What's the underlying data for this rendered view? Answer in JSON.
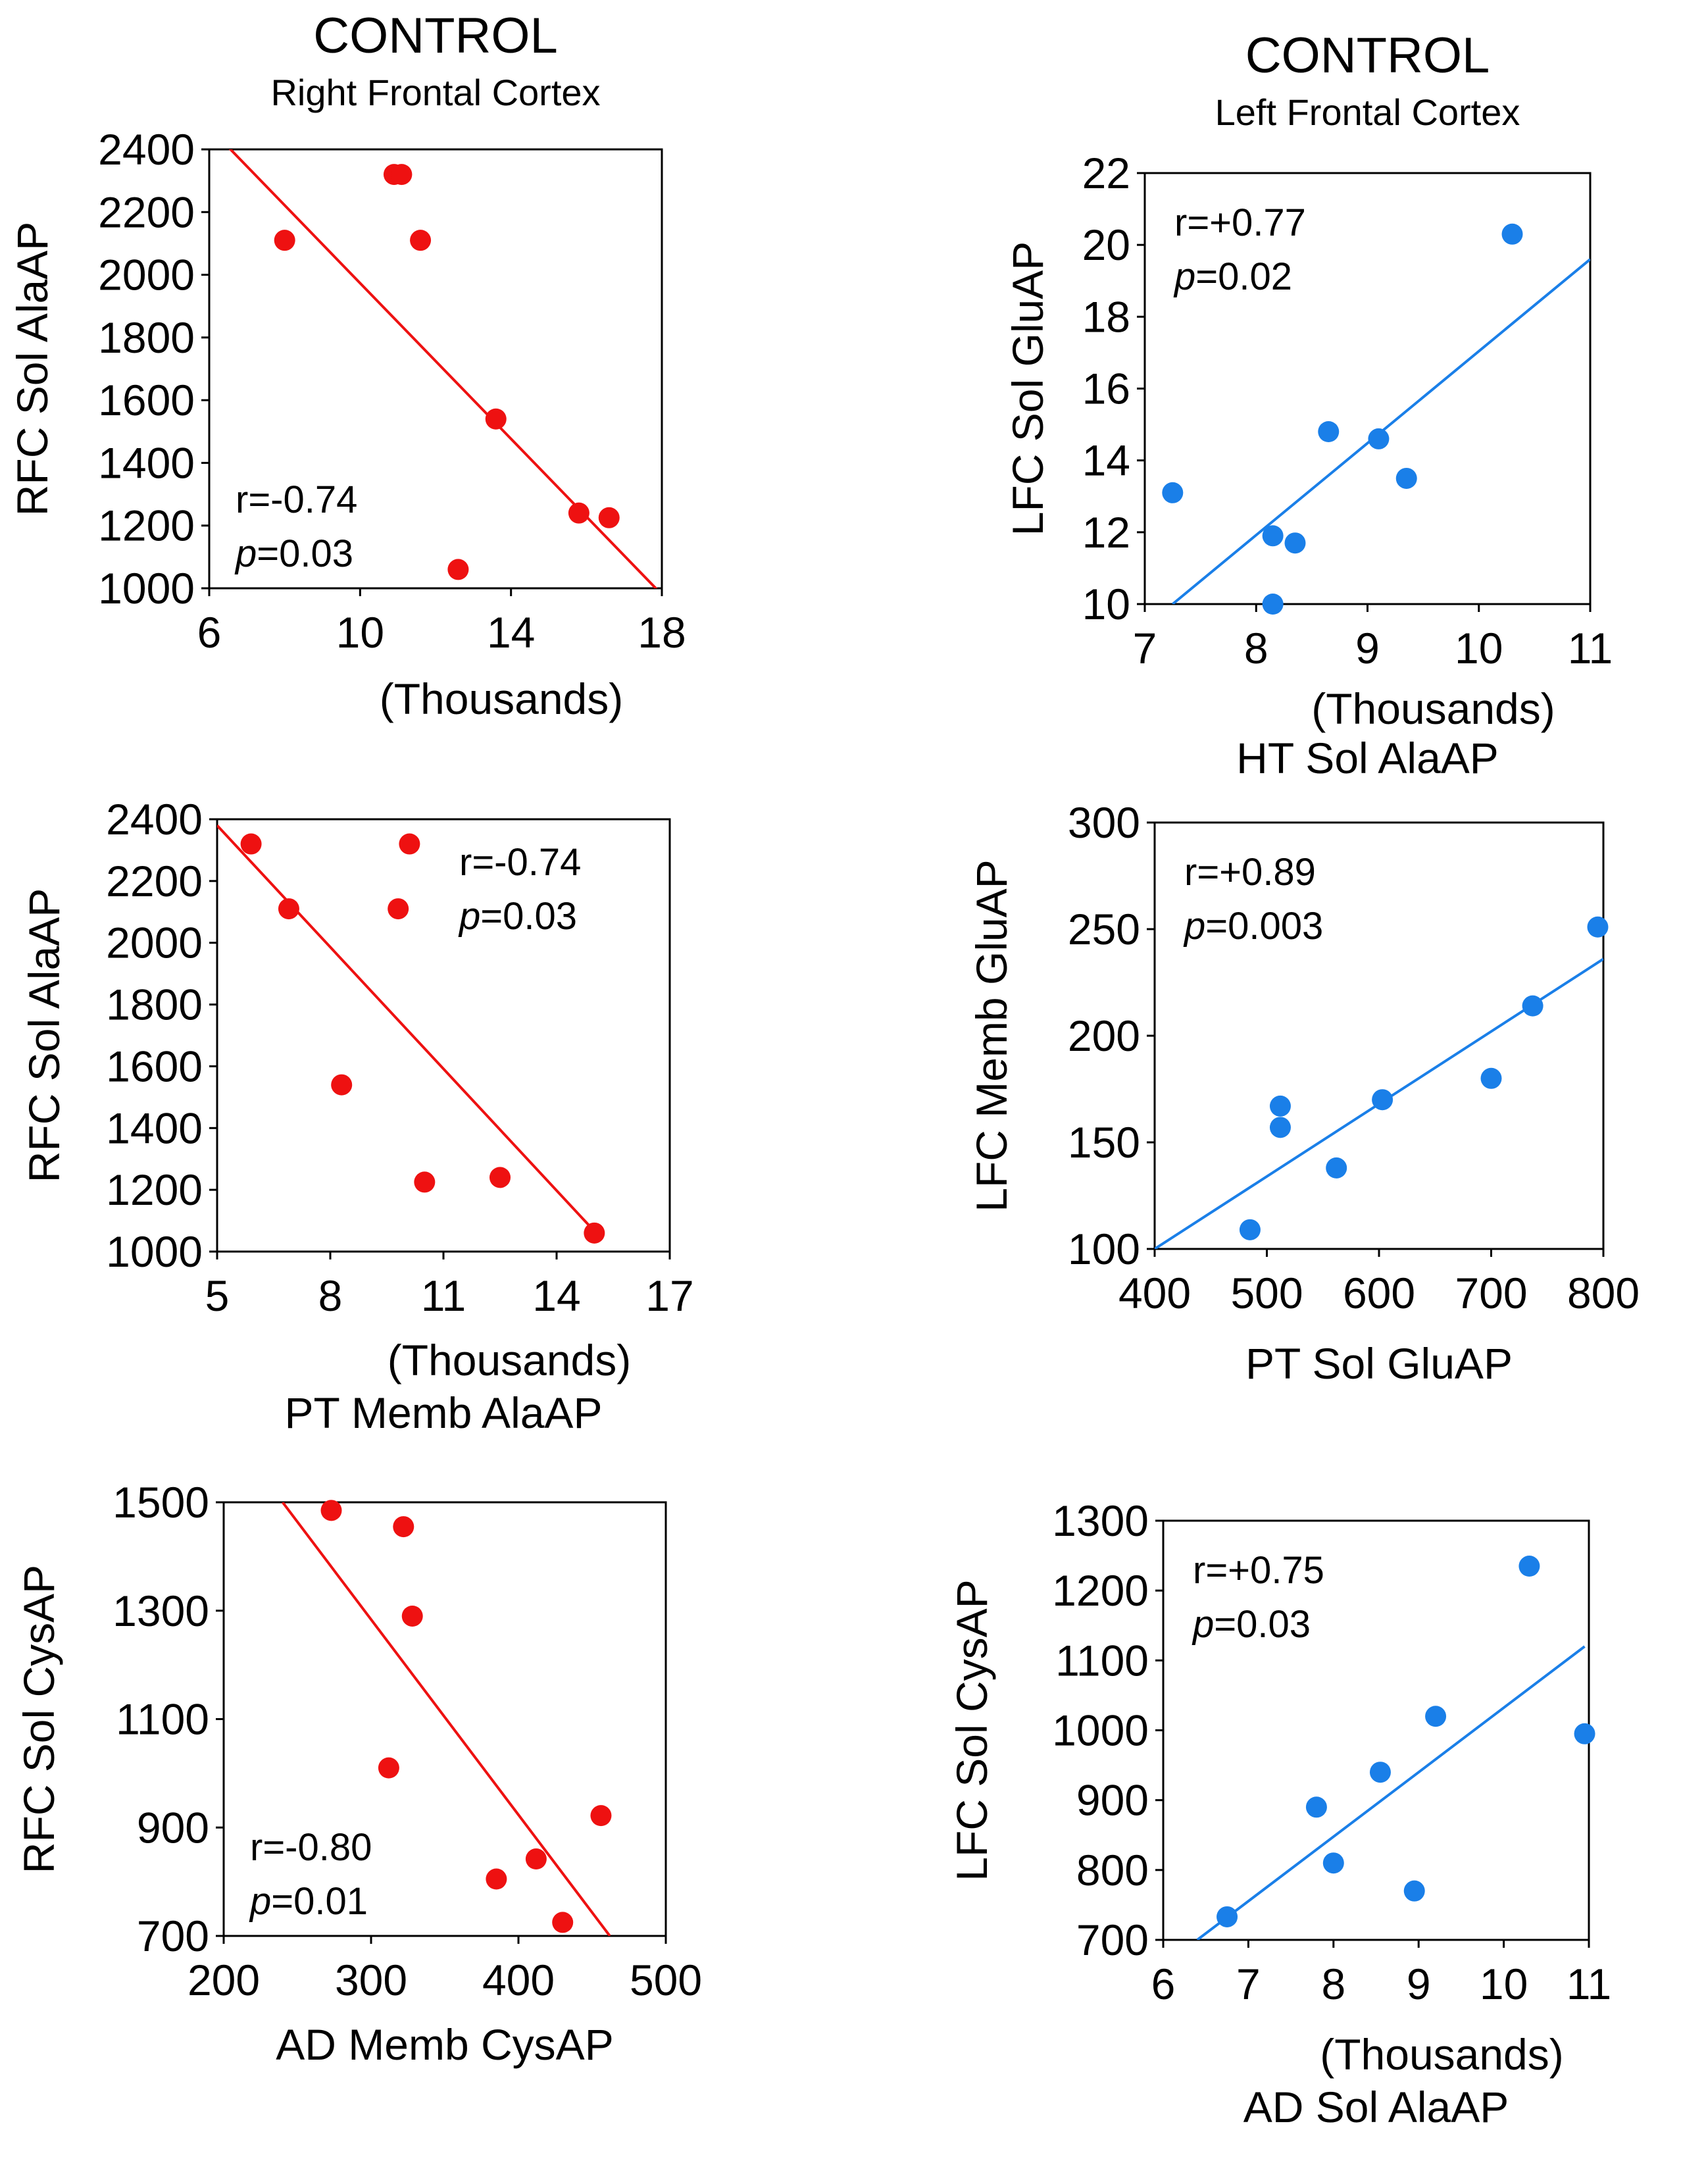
{
  "colors": {
    "red_series": "#ee1111",
    "blue_series": "#1a7fe8",
    "axis": "#000000",
    "background": "#ffffff"
  },
  "chart_data": [
    {
      "type": "scatter",
      "title": "CONTROL",
      "subtitle": "Right Frontal Cortex",
      "xlabel": "(Thousands)",
      "xlabel2": "",
      "ylabel": "RFC Sol AlaAP",
      "x_ticks": [
        "6",
        "10",
        "14",
        "18"
      ],
      "y_ticks": [
        "1000",
        "1200",
        "1400",
        "1600",
        "1800",
        "2000",
        "2200",
        "2400"
      ],
      "xlim": [
        6,
        18
      ],
      "ylim": [
        1000,
        2400
      ],
      "grid": false,
      "color": "#ee1111",
      "stat_position": "bottom-left",
      "points": [
        [
          8.0,
          2110
        ],
        [
          10.9,
          2320
        ],
        [
          11.1,
          2320
        ],
        [
          11.6,
          2110
        ],
        [
          13.6,
          1540
        ],
        [
          15.8,
          1240
        ],
        [
          16.6,
          1225
        ],
        [
          12.6,
          1060
        ]
      ],
      "fit": [
        [
          6.0,
          2470
        ],
        [
          18.0,
          980
        ]
      ],
      "stat_r": "r=-0.74",
      "stat_p_label": "p",
      "stat_p_value": "=0.03"
    },
    {
      "type": "scatter",
      "title": "CONTROL",
      "subtitle": "Left Frontal Cortex",
      "xlabel": "(Thousands)",
      "xlabel2": "HT Sol AlaAP",
      "ylabel": "LFC Sol GluAP",
      "x_ticks": [
        "7",
        "8",
        "9",
        "10",
        "11"
      ],
      "y_ticks": [
        "10",
        "12",
        "14",
        "16",
        "18",
        "20",
        "22"
      ],
      "xlim": [
        7,
        11
      ],
      "ylim": [
        10,
        22
      ],
      "grid": false,
      "color": "#1a7fe8",
      "stat_position": "top-left",
      "points": [
        [
          7.25,
          13.1
        ],
        [
          8.15,
          11.9
        ],
        [
          8.35,
          11.7
        ],
        [
          8.15,
          10.0
        ],
        [
          8.65,
          14.8
        ],
        [
          9.1,
          14.6
        ],
        [
          9.35,
          13.5
        ],
        [
          10.3,
          20.3
        ]
      ],
      "fit": [
        [
          7.25,
          10.0
        ],
        [
          11.0,
          19.6
        ]
      ],
      "stat_r": "r=+0.77",
      "stat_p_label": "p",
      "stat_p_value": "=0.02"
    },
    {
      "type": "scatter",
      "title": "",
      "subtitle": "",
      "xlabel": "(Thousands)",
      "xlabel2": "PT  Memb  AlaAP",
      "ylabel": "RFC Sol  AlaAP",
      "x_ticks": [
        "5",
        "8",
        "11",
        "14",
        "17"
      ],
      "y_ticks": [
        "1000",
        "1200",
        "1400",
        "1600",
        "1800",
        "2000",
        "2200",
        "2400"
      ],
      "xlim": [
        5,
        17
      ],
      "ylim": [
        1000,
        2400
      ],
      "grid": false,
      "color": "#ee1111",
      "stat_position": "top-right",
      "points": [
        [
          5.9,
          2320
        ],
        [
          6.9,
          2110
        ],
        [
          8.3,
          1540
        ],
        [
          9.8,
          2110
        ],
        [
          10.1,
          2320
        ],
        [
          10.5,
          1225
        ],
        [
          12.5,
          1240
        ],
        [
          15.0,
          1060
        ]
      ],
      "fit": [
        [
          5.0,
          2380
        ],
        [
          15.2,
          1040
        ]
      ],
      "stat_r": "r=-0.74",
      "stat_p_label": "p",
      "stat_p_value": "=0.03"
    },
    {
      "type": "scatter",
      "title": "",
      "subtitle": "",
      "xlabel": "PT Sol GluAP",
      "xlabel2": "",
      "ylabel": "LFC Memb GluAP",
      "x_ticks": [
        "400",
        "500",
        "600",
        "700",
        "800"
      ],
      "y_ticks": [
        "100",
        "150",
        "200",
        "250",
        "300"
      ],
      "xlim": [
        400,
        800
      ],
      "ylim": [
        100,
        300
      ],
      "grid": false,
      "color": "#1a7fe8",
      "stat_position": "top-left",
      "points": [
        [
          485,
          109
        ],
        [
          512,
          167
        ],
        [
          512,
          157
        ],
        [
          562,
          138
        ],
        [
          603,
          170
        ],
        [
          700,
          180
        ],
        [
          737,
          214
        ],
        [
          795,
          251
        ]
      ],
      "fit": [
        [
          400,
          100
        ],
        [
          800,
          236
        ]
      ],
      "stat_r": "r=+0.89",
      "stat_p_label": "p",
      "stat_p_value": "=0.003"
    },
    {
      "type": "scatter",
      "title": "",
      "subtitle": "",
      "xlabel": "AD Memb CysAP",
      "xlabel2": "",
      "ylabel": "RFC Sol CysAP",
      "x_ticks": [
        "200",
        "300",
        "400",
        "500"
      ],
      "y_ticks": [
        "700",
        "900",
        "1100",
        "1300",
        "1500"
      ],
      "xlim": [
        200,
        500
      ],
      "ylim": [
        700,
        1500
      ],
      "grid": false,
      "color": "#ee1111",
      "stat_position": "bottom-left",
      "points": [
        [
          273,
          1485
        ],
        [
          322,
          1455
        ],
        [
          328,
          1290
        ],
        [
          312,
          1010
        ],
        [
          385,
          805
        ],
        [
          412,
          842
        ],
        [
          430,
          725
        ],
        [
          456,
          922
        ]
      ],
      "fit": [
        [
          240,
          1500
        ],
        [
          462,
          700
        ]
      ],
      "stat_r": "r=-0.80",
      "stat_p_label": "p",
      "stat_p_value": "=0.01"
    },
    {
      "type": "scatter",
      "title": "",
      "subtitle": "",
      "xlabel": "(Thousands)",
      "xlabel2": "AD  Sol AlaAP",
      "ylabel": "LFC Sol CysAP",
      "x_ticks": [
        "6",
        "7",
        "8",
        "9",
        "10",
        "11"
      ],
      "y_ticks": [
        "700",
        "800",
        "900",
        "1000",
        "1100",
        "1200",
        "1300"
      ],
      "xlim": [
        6,
        11
      ],
      "ylim": [
        700,
        1300
      ],
      "grid": false,
      "color": "#1a7fe8",
      "stat_position": "top-left",
      "points": [
        [
          6.75,
          733
        ],
        [
          7.8,
          890
        ],
        [
          8.0,
          810
        ],
        [
          8.55,
          940
        ],
        [
          8.95,
          770
        ],
        [
          9.2,
          1020
        ],
        [
          10.3,
          1235
        ],
        [
          10.95,
          995
        ]
      ],
      "fit": [
        [
          6.4,
          700
        ],
        [
          10.95,
          1120
        ]
      ],
      "stat_r": "r=+0.75",
      "stat_p_label": "p",
      "stat_p_value": "=0.03"
    }
  ]
}
